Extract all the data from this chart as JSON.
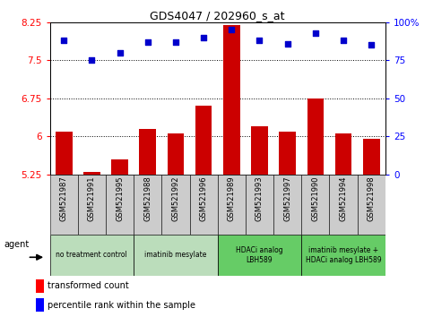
{
  "title": "GDS4047 / 202960_s_at",
  "samples": [
    "GSM521987",
    "GSM521991",
    "GSM521995",
    "GSM521988",
    "GSM521992",
    "GSM521996",
    "GSM521989",
    "GSM521993",
    "GSM521997",
    "GSM521990",
    "GSM521994",
    "GSM521998"
  ],
  "bar_values": [
    6.1,
    5.3,
    5.55,
    6.15,
    6.05,
    6.6,
    8.2,
    6.2,
    6.1,
    6.75,
    6.05,
    5.95
  ],
  "dot_values": [
    88,
    75,
    80,
    87,
    87,
    90,
    95,
    88,
    86,
    93,
    88,
    85
  ],
  "bar_color": "#cc0000",
  "dot_color": "#0000cc",
  "ylim_left": [
    5.25,
    8.25
  ],
  "ylim_right": [
    0,
    100
  ],
  "yticks_left": [
    5.25,
    6.0,
    6.75,
    7.5,
    8.25
  ],
  "ytick_labels_left": [
    "5.25",
    "6",
    "6.75",
    "7.5",
    "8.25"
  ],
  "yticks_right": [
    0,
    25,
    50,
    75,
    100
  ],
  "ytick_labels_right": [
    "0",
    "25",
    "50",
    "75",
    "100%"
  ],
  "hlines": [
    6.0,
    6.75,
    7.5
  ],
  "groups": [
    {
      "label": "no treatment control",
      "indices": [
        0,
        1,
        2
      ],
      "color": "#bbddbb"
    },
    {
      "label": "imatinib mesylate",
      "indices": [
        3,
        4,
        5
      ],
      "color": "#bbddbb"
    },
    {
      "label": "HDACi analog\nLBH589",
      "indices": [
        6,
        7,
        8
      ],
      "color": "#66cc66"
    },
    {
      "label": "imatinib mesylate +\nHDACi analog LBH589",
      "indices": [
        9,
        10,
        11
      ],
      "color": "#66cc66"
    }
  ],
  "agent_label": "agent",
  "legend_bar_label": "transformed count",
  "legend_dot_label": "percentile rank within the sample",
  "bar_width": 0.6,
  "tick_label_fontsize": 6,
  "title_fontsize": 9
}
